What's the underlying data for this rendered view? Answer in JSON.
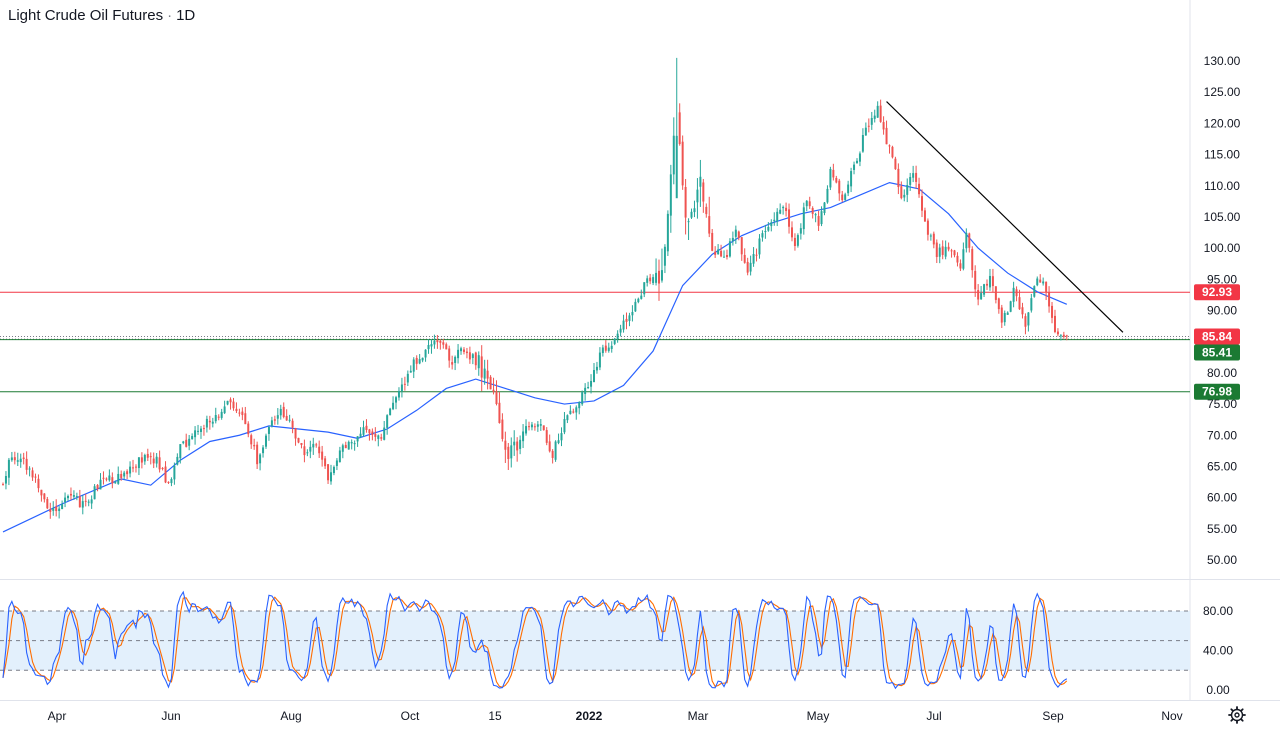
{
  "header": {
    "symbol": "Light Crude Oil Futures",
    "interval": "1D"
  },
  "colors": {
    "up": "#26a69a",
    "down": "#ef5350",
    "ma": "#2962ff",
    "stoch_k": "#2962ff",
    "stoch_d": "#ff6d00",
    "trendline": "#000000",
    "resistance": "#f23645",
    "support": "#1b7a33",
    "band_fill": "#e3f0fc"
  },
  "chart_data": {
    "type": "candlestick",
    "x_ticks": [
      "Apr",
      "Jun",
      "Aug",
      "Oct",
      "15",
      "2022",
      "Mar",
      "May",
      "Jul",
      "Sep",
      "Nov"
    ],
    "y_ticks": [
      "130.00",
      "125.00",
      "120.00",
      "115.00",
      "110.00",
      "105.00",
      "100.00",
      "95.00",
      "90.00",
      "85.00",
      "80.00",
      "75.00",
      "70.00",
      "65.00",
      "60.00",
      "55.00",
      "50.00"
    ],
    "ylim": [
      50,
      130
    ],
    "price_path": [
      [
        0,
        62
      ],
      [
        3,
        67
      ],
      [
        8,
        65
      ],
      [
        12,
        62
      ],
      [
        16,
        58
      ],
      [
        22,
        60
      ],
      [
        28,
        59
      ],
      [
        34,
        63
      ],
      [
        40,
        63
      ],
      [
        46,
        66
      ],
      [
        52,
        66
      ],
      [
        56,
        62
      ],
      [
        60,
        68
      ],
      [
        66,
        71
      ],
      [
        72,
        73
      ],
      [
        77,
        76
      ],
      [
        82,
        72
      ],
      [
        86,
        66
      ],
      [
        90,
        71
      ],
      [
        94,
        74
      ],
      [
        98,
        71
      ],
      [
        102,
        67
      ],
      [
        106,
        69
      ],
      [
        110,
        63
      ],
      [
        114,
        68
      ],
      [
        118,
        69
      ],
      [
        122,
        71
      ],
      [
        128,
        70
      ],
      [
        132,
        75
      ],
      [
        138,
        81
      ],
      [
        144,
        84
      ],
      [
        148,
        85
      ],
      [
        152,
        82
      ],
      [
        156,
        84
      ],
      [
        160,
        82
      ],
      [
        164,
        79
      ],
      [
        168,
        72
      ],
      [
        170,
        67
      ],
      [
        174,
        68
      ],
      [
        178,
        72
      ],
      [
        182,
        71
      ],
      [
        186,
        67
      ],
      [
        190,
        72
      ],
      [
        194,
        75
      ],
      [
        198,
        78
      ],
      [
        202,
        83
      ],
      [
        206,
        85
      ],
      [
        210,
        88
      ],
      [
        214,
        91
      ],
      [
        218,
        95
      ],
      [
        222,
        94
      ],
      [
        226,
        110
      ],
      [
        228,
        124
      ],
      [
        230,
        110
      ],
      [
        232,
        104
      ],
      [
        236,
        113
      ],
      [
        240,
        100
      ],
      [
        244,
        98
      ],
      [
        248,
        103
      ],
      [
        252,
        96
      ],
      [
        256,
        101
      ],
      [
        260,
        104
      ],
      [
        264,
        107
      ],
      [
        268,
        100
      ],
      [
        272,
        108
      ],
      [
        276,
        104
      ],
      [
        280,
        112
      ],
      [
        284,
        108
      ],
      [
        288,
        113
      ],
      [
        292,
        119
      ],
      [
        296,
        122
      ],
      [
        300,
        116
      ],
      [
        304,
        108
      ],
      [
        308,
        112
      ],
      [
        312,
        104
      ],
      [
        316,
        99
      ],
      [
        320,
        100
      ],
      [
        324,
        96
      ],
      [
        326,
        103
      ],
      [
        330,
        91
      ],
      [
        334,
        96
      ],
      [
        338,
        88
      ],
      [
        342,
        93
      ],
      [
        346,
        88
      ],
      [
        350,
        96
      ],
      [
        352,
        94
      ],
      [
        356,
        86
      ],
      [
        358,
        86
      ],
      [
        359,
        86
      ],
      [
        360,
        85.84
      ]
    ],
    "moving_average": [
      [
        0,
        54.5
      ],
      [
        20,
        59
      ],
      [
        40,
        63
      ],
      [
        50,
        62
      ],
      [
        60,
        66
      ],
      [
        70,
        69
      ],
      [
        80,
        70
      ],
      [
        90,
        71.5
      ],
      [
        100,
        71
      ],
      [
        110,
        70.5
      ],
      [
        120,
        69.5
      ],
      [
        130,
        71
      ],
      [
        140,
        74
      ],
      [
        150,
        77.5
      ],
      [
        160,
        79
      ],
      [
        170,
        77.5
      ],
      [
        180,
        76
      ],
      [
        190,
        75
      ],
      [
        200,
        75.5
      ],
      [
        210,
        78
      ],
      [
        220,
        83.5
      ],
      [
        230,
        94
      ],
      [
        240,
        99
      ],
      [
        250,
        102
      ],
      [
        260,
        104
      ],
      [
        270,
        105.5
      ],
      [
        280,
        106.5
      ],
      [
        290,
        108.5
      ],
      [
        300,
        110.5
      ],
      [
        310,
        109.5
      ],
      [
        320,
        105.5
      ],
      [
        330,
        100
      ],
      [
        340,
        96
      ],
      [
        350,
        93
      ],
      [
        360,
        91
      ]
    ],
    "trendline": {
      "start": [
        299,
        123.5
      ],
      "end": [
        379,
        86.5
      ]
    },
    "levels": [
      {
        "price": 92.93,
        "label": "92.93",
        "color": "#f23645"
      },
      {
        "price": 85.84,
        "label": "85.84",
        "color": "#f23645"
      },
      {
        "price": 85.41,
        "label": "85.41",
        "color": "#1b7a33"
      },
      {
        "price": 76.98,
        "label": "76.98",
        "color": "#1b7a33"
      }
    ],
    "stochastic": {
      "k_period": 5,
      "ylim": [
        0,
        100
      ],
      "y_ticks": [
        "80.00",
        "40.00",
        "0.00"
      ],
      "band": [
        20,
        80
      ],
      "midline": 50
    }
  }
}
